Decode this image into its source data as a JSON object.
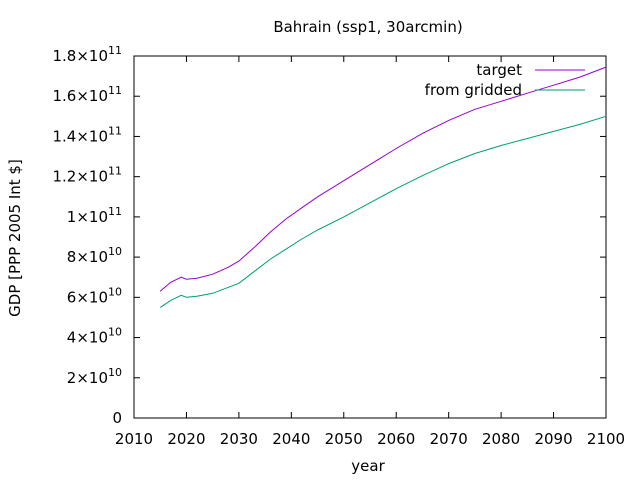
{
  "chart_data": {
    "type": "line",
    "title": "Bahrain (ssp1, 30arcmin)",
    "xlabel": "year",
    "ylabel": "GDP [PPP 2005 Int $]",
    "xlim": [
      2010,
      2100
    ],
    "ylim": [
      0,
      180000000000.0
    ],
    "grid": false,
    "legend_position": "top-right",
    "x_ticks": [
      2010,
      2020,
      2030,
      2040,
      2050,
      2060,
      2070,
      2080,
      2090,
      2100
    ],
    "x_tick_labels": [
      "2010",
      "2020",
      "2030",
      "2040",
      "2050",
      "2060",
      "2070",
      "2080",
      "2090",
      "2100"
    ],
    "y_ticks": [
      {
        "value": 0,
        "mantissa": "0",
        "exponent": ""
      },
      {
        "value": 20000000000.0,
        "mantissa": "2×10",
        "exponent": "10"
      },
      {
        "value": 40000000000.0,
        "mantissa": "4×10",
        "exponent": "10"
      },
      {
        "value": 60000000000.0,
        "mantissa": "6×10",
        "exponent": "10"
      },
      {
        "value": 80000000000.0,
        "mantissa": "8×10",
        "exponent": "10"
      },
      {
        "value": 100000000000.0,
        "mantissa": "1×10",
        "exponent": "11"
      },
      {
        "value": 120000000000.0,
        "mantissa": "1.2×10",
        "exponent": "11"
      },
      {
        "value": 140000000000.0,
        "mantissa": "1.4×10",
        "exponent": "11"
      },
      {
        "value": 160000000000.0,
        "mantissa": "1.6×10",
        "exponent": "11"
      },
      {
        "value": 180000000000.0,
        "mantissa": "1.8×10",
        "exponent": "11"
      }
    ],
    "series": [
      {
        "name": "target",
        "color": "#9400d3",
        "x": [
          2015,
          2017,
          2019,
          2020,
          2022,
          2025,
          2028,
          2030,
          2033,
          2036,
          2039,
          2042,
          2045,
          2050,
          2055,
          2060,
          2065,
          2070,
          2075,
          2080,
          2085,
          2090,
          2095,
          2100
        ],
        "y": [
          63000000000.0,
          67500000000.0,
          70000000000.0,
          69000000000.0,
          69500000000.0,
          71500000000.0,
          75000000000.0,
          78000000000.0,
          85000000000.0,
          92500000000.0,
          99000000000.0,
          104500000000.0,
          110000000000.0,
          118000000000.0,
          126000000000.0,
          134000000000.0,
          141500000000.0,
          148000000000.0,
          153500000000.0,
          157500000000.0,
          161500000000.0,
          165500000000.0,
          169500000000.0,
          174500000000.0
        ]
      },
      {
        "name": "from gridded",
        "color": "#009e73",
        "x": [
          2015,
          2017,
          2019,
          2020,
          2022,
          2025,
          2028,
          2030,
          2033,
          2036,
          2039,
          2042,
          2045,
          2050,
          2055,
          2060,
          2065,
          2070,
          2075,
          2080,
          2085,
          2090,
          2095,
          2100
        ],
        "y": [
          55000000000.0,
          58500000000.0,
          61000000000.0,
          60000000000.0,
          60500000000.0,
          62000000000.0,
          65000000000.0,
          67000000000.0,
          73000000000.0,
          79000000000.0,
          84000000000.0,
          89000000000.0,
          93500000000.0,
          100000000000.0,
          107000000000.0,
          114000000000.0,
          120500000000.0,
          126500000000.0,
          131500000000.0,
          135500000000.0,
          139000000000.0,
          142500000000.0,
          146000000000.0,
          150000000000.0
        ]
      }
    ]
  }
}
